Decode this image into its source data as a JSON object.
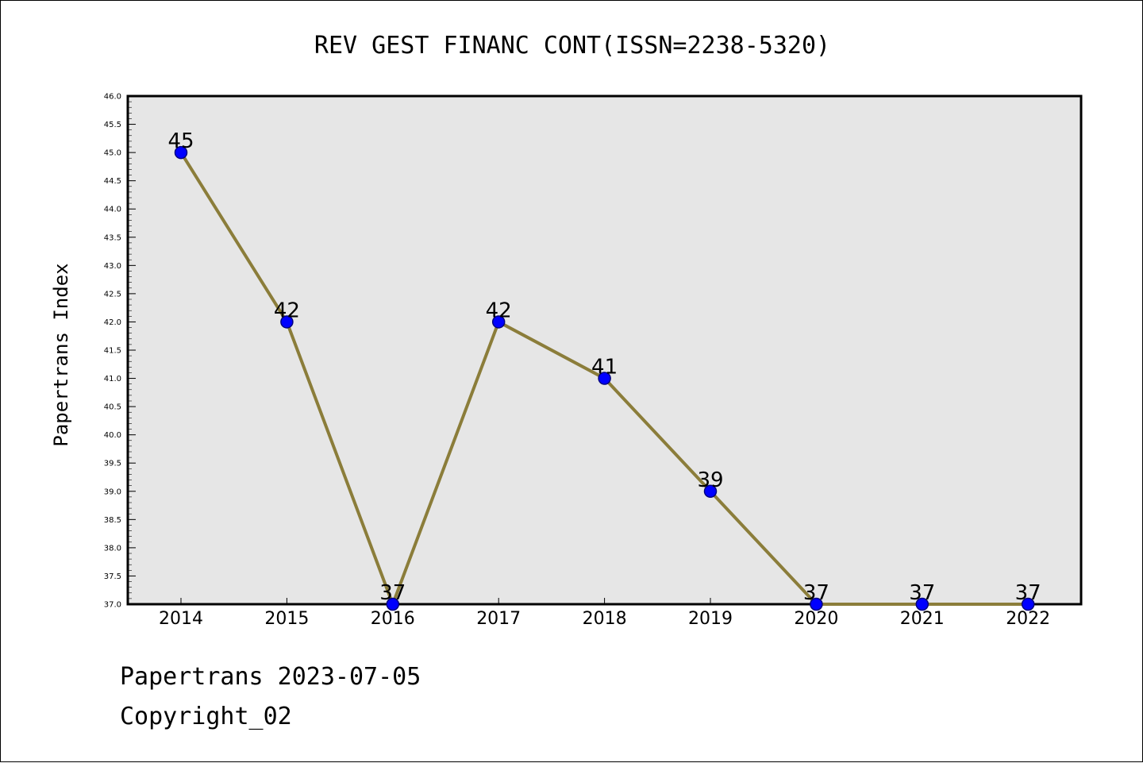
{
  "chart_data": {
    "type": "line",
    "title": "REV GEST FINANC CONT(ISSN=2238-5320)",
    "xlabel": "",
    "ylabel": "Papertrans Index",
    "categories": [
      "2014",
      "2015",
      "2016",
      "2017",
      "2018",
      "2019",
      "2020",
      "2021",
      "2022"
    ],
    "values": [
      45,
      42,
      37,
      42,
      41,
      39,
      37,
      37,
      37
    ],
    "data_labels": [
      "45",
      "42",
      "37",
      "42",
      "41",
      "39",
      "37",
      "37",
      "37"
    ],
    "ylim": [
      37.0,
      46.0
    ],
    "y_ticks": [
      "37.0",
      "37.5",
      "38.0",
      "38.5",
      "39.0",
      "39.5",
      "40.0",
      "40.5",
      "41.0",
      "41.5",
      "42.0",
      "42.5",
      "43.0",
      "43.5",
      "44.0",
      "44.5",
      "45.0",
      "45.5",
      "46.0"
    ],
    "grid": false,
    "legend": "none",
    "colors": {
      "line": "#8B7D3A",
      "marker_fill": "#0000FF",
      "marker_edge": "#000080",
      "plot_background": "#E6E6E6"
    }
  },
  "footer": {
    "date_line": "Papertrans 2023-07-05",
    "copyright": "Copyright_02"
  }
}
